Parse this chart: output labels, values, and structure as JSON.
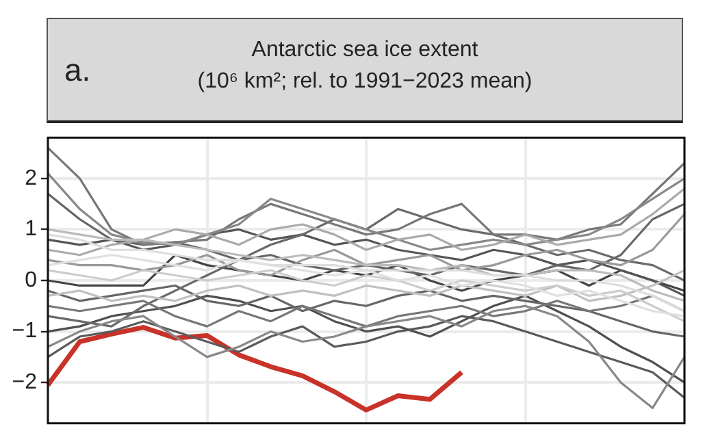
{
  "chart_data": {
    "type": "line",
    "title": "Antarctic sea ice extent",
    "subtitle": "(10⁶ km²; rel. to 1991−2023 mean)",
    "annotations": [
      "a."
    ],
    "categories": [
      null,
      null,
      null,
      null,
      null,
      null,
      null,
      null,
      null,
      null,
      null,
      null,
      null,
      null,
      null,
      null,
      null,
      null,
      null,
      null,
      null
    ],
    "ylim": [
      -2.8,
      2.8
    ],
    "yticks": [
      {
        "value": -2,
        "label": "−2"
      },
      {
        "value": -1,
        "label": "−1"
      },
      0,
      1,
      2
    ],
    "grid": true,
    "marker": "none",
    "line_style": "solid",
    "series": [
      {
        "color": "#e0e0e0",
        "values": [
          0.3,
          0.4,
          0.5,
          0.4,
          0.3,
          0.2,
          0.4,
          0.3,
          0.2,
          0.1,
          0.2,
          0.0,
          0.1,
          -0.1,
          0.0,
          -0.1,
          -0.3,
          -0.2,
          -0.4,
          -0.6,
          -0.7
        ]
      },
      {
        "color": "#dddddd",
        "values": [
          0.9,
          0.8,
          0.6,
          0.6,
          0.5,
          0.4,
          0.4,
          0.3,
          0.3,
          0.3,
          0.2,
          0.2,
          0.2,
          0.2,
          0.1,
          0.1,
          0.0,
          0.0,
          -0.1,
          -0.3,
          -0.6
        ]
      },
      {
        "color": "#cccccc",
        "values": [
          0.2,
          0.1,
          0.0,
          0.2,
          0.1,
          0.0,
          0.1,
          0.2,
          0.0,
          -0.1,
          0.1,
          0.0,
          -0.2,
          0.0,
          -0.1,
          -0.2,
          -0.1,
          -0.3,
          -0.2,
          -0.5,
          -0.8
        ]
      },
      {
        "color": "#c0c0c0",
        "values": [
          -0.3,
          -0.2,
          -0.4,
          -0.3,
          -0.4,
          -0.2,
          -0.1,
          -0.3,
          -0.2,
          -0.3,
          -0.1,
          -0.2,
          -0.3,
          -0.1,
          -0.2,
          -0.3,
          -0.1,
          -0.4,
          -0.3,
          -0.1,
          0.2
        ]
      },
      {
        "color": "#bbbbbb",
        "values": [
          1.0,
          0.9,
          0.8,
          0.8,
          0.7,
          0.6,
          0.5,
          0.4,
          0.5,
          0.4,
          0.3,
          0.3,
          0.2,
          0.3,
          0.1,
          0.1,
          0.2,
          0.2,
          0.1,
          -0.2,
          -0.4
        ]
      },
      {
        "color": "#aaaaaa",
        "values": [
          0.6,
          0.5,
          0.7,
          0.8,
          1.0,
          0.9,
          0.7,
          1.0,
          1.1,
          0.9,
          0.6,
          0.8,
          0.9,
          0.6,
          0.7,
          0.9,
          0.7,
          0.8,
          0.9,
          1.3,
          1.8
        ]
      },
      {
        "color": "#999999",
        "values": [
          0.4,
          0.3,
          0.3,
          0.2,
          0.3,
          0.5,
          0.2,
          0.1,
          0.4,
          0.6,
          0.3,
          0.4,
          0.5,
          0.2,
          0.3,
          0.5,
          0.6,
          0.4,
          0.3,
          0.6,
          1.3
        ]
      },
      {
        "color": "#888888",
        "values": [
          2.1,
          1.4,
          0.9,
          0.75,
          0.7,
          0.9,
          1.1,
          1.6,
          1.4,
          1.2,
          1.0,
          0.8,
          0.6,
          0.7,
          0.8,
          0.7,
          0.8,
          0.9,
          1.2,
          1.6,
          2.0
        ]
      },
      {
        "color": "#888888",
        "values": [
          -1.3,
          -1.0,
          -0.8,
          -0.7,
          -1.1,
          -1.5,
          -1.3,
          -1.0,
          -1.2,
          -1.1,
          -0.9,
          -0.8,
          -0.7,
          -0.9,
          -0.6,
          -0.5,
          -0.7,
          -1.2,
          -2.0,
          -2.5,
          -1.5
        ]
      },
      {
        "color": "#777777",
        "values": [
          2.6,
          2.0,
          1.0,
          0.7,
          0.75,
          0.8,
          1.2,
          1.5,
          1.3,
          1.1,
          0.9,
          1.0,
          1.3,
          1.5,
          0.9,
          0.9,
          0.8,
          1.0,
          1.1,
          1.7,
          2.3
        ]
      },
      {
        "color": "#777777",
        "values": [
          -0.5,
          -0.6,
          -0.5,
          -0.4,
          -0.7,
          -0.9,
          -0.6,
          -0.8,
          -0.5,
          -0.7,
          -0.9,
          -0.7,
          -0.6,
          -0.5,
          -0.7,
          -0.6,
          -0.4,
          -0.6,
          -0.5,
          -0.3,
          -0.6
        ]
      },
      {
        "color": "#6a6a6a",
        "values": [
          -0.7,
          -0.8,
          -0.9,
          -0.5,
          -0.2,
          0.1,
          0.4,
          0.7,
          0.9,
          1.2,
          1.0,
          1.4,
          1.2,
          1.0,
          0.9,
          0.7,
          0.5,
          0.6,
          0.4,
          0.3,
          0.0
        ]
      },
      {
        "color": "#666666",
        "values": [
          1.7,
          1.2,
          0.8,
          0.7,
          0.75,
          0.6,
          0.4,
          0.5,
          0.3,
          0.2,
          0.3,
          0.2,
          0.1,
          0.3,
          0.2,
          0.1,
          0.3,
          0.2,
          0.5,
          1.2,
          1.5
        ]
      },
      {
        "color": "#666666",
        "values": [
          -0.2,
          -0.4,
          -0.3,
          -0.2,
          -0.1,
          -0.4,
          -0.5,
          -0.3,
          -0.6,
          -0.4,
          -0.5,
          -0.3,
          -0.2,
          -0.4,
          -0.3,
          -0.4,
          -0.5,
          -0.6,
          -0.8,
          -1.0,
          -1.1
        ]
      },
      {
        "color": "#5a5a5a",
        "values": [
          -1.5,
          -1.1,
          -1.0,
          -0.8,
          -1.0,
          -1.2,
          -1.4,
          -1.1,
          -0.9,
          -1.3,
          -1.2,
          -1.0,
          -0.9,
          -0.7,
          -0.8,
          -1.0,
          -1.2,
          -1.4,
          -1.6,
          -1.8,
          -2.3
        ]
      },
      {
        "color": "#555555",
        "values": [
          0.8,
          0.7,
          0.8,
          0.6,
          0.7,
          0.9,
          1.0,
          0.8,
          0.9,
          0.7,
          0.8,
          0.6,
          0.5,
          0.4,
          0.6,
          0.5,
          0.3,
          0.4,
          0.2,
          0.0,
          -0.3
        ]
      },
      {
        "color": "#4f4f4f",
        "values": [
          -1.0,
          -0.9,
          -0.7,
          -0.6,
          -0.5,
          -0.3,
          -0.4,
          -0.6,
          -0.5,
          -0.8,
          -1.0,
          -0.9,
          -1.1,
          -0.8,
          -0.5,
          -0.3,
          -0.6,
          -0.9,
          -1.3,
          -1.6,
          -2.0
        ]
      },
      {
        "color": "#444444",
        "values": [
          0.0,
          -0.1,
          -0.1,
          -0.1,
          0.5,
          0.3,
          0.2,
          0.1,
          0.0,
          0.2,
          0.1,
          0.3,
          0.0,
          -0.2,
          0.0,
          0.1,
          0.2,
          -0.1,
          0.2,
          0.0,
          -0.2
        ]
      },
      {
        "color": "#c83228",
        "values": [
          -2.05,
          -1.2,
          -1.05,
          -0.92,
          -1.13,
          -1.08,
          -1.46,
          -1.69,
          -1.87,
          -2.18,
          -2.54,
          -2.26,
          -2.33,
          -1.8,
          null,
          null,
          null,
          null,
          null,
          null,
          null
        ]
      }
    ]
  }
}
